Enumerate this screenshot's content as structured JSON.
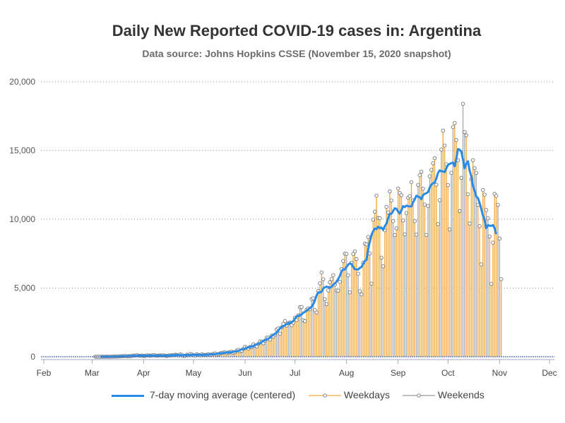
{
  "chart_data": {
    "type": "bar",
    "title": "Daily New Reported COVID-19 cases in: Argentina",
    "subtitle": "Data source: Johns Hopkins CSSE (November 15, 2020 snapshot)",
    "xlabel": "",
    "ylabel": "",
    "ylim": [
      0,
      20000
    ],
    "yticks": [
      "0",
      "5,000",
      "10,000",
      "15,000",
      "20,000"
    ],
    "ytick_values": [
      0,
      5000,
      10000,
      15000,
      20000
    ],
    "xticks": [
      "Feb",
      "Mar",
      "Apr",
      "May",
      "Jun",
      "Jul",
      "Aug",
      "Sep",
      "Oct",
      "Nov",
      "Dec"
    ],
    "xtick_dates": [
      "2020-02-01",
      "2020-03-01",
      "2020-04-01",
      "2020-05-01",
      "2020-06-01",
      "2020-07-01",
      "2020-08-01",
      "2020-09-01",
      "2020-10-01",
      "2020-11-01",
      "2020-12-01"
    ],
    "xlim": [
      "2020-02-01",
      "2020-12-01"
    ],
    "grid": "horizontal dotted",
    "legend_position": "bottom",
    "legend": [
      "7-day moving average (centered)",
      "Weekdays",
      "Weekends"
    ],
    "start_date": "2020-03-03",
    "daily_cases": [
      1,
      0,
      1,
      2,
      4,
      2,
      5,
      4,
      2,
      3,
      9,
      11,
      10,
      14,
      19,
      31,
      30,
      42,
      57,
      33,
      36,
      46,
      55,
      87,
      89,
      115,
      75,
      70,
      86,
      58,
      69,
      102,
      96,
      74,
      96,
      116,
      89,
      76,
      88,
      93,
      88,
      102,
      79,
      61,
      95,
      94,
      107,
      111,
      145,
      132,
      102,
      165,
      144,
      60,
      67,
      145,
      108,
      198,
      167,
      116,
      93,
      171,
      130,
      107,
      179,
      143,
      126,
      148,
      183,
      135,
      161,
      213,
      241,
      163,
      191,
      244,
      285,
      304,
      321,
      259,
      307,
      345,
      368,
      285,
      333,
      452,
      508,
      405,
      433,
      578,
      720,
      661,
      585,
      710,
      702,
      904,
      813,
      743,
      928,
      1114,
      1100,
      979,
      1168,
      1386,
      1391,
      1240,
      1531,
      1460,
      1600,
      1990,
      2060,
      1680,
      2140,
      2400,
      2600,
      2260,
      2440,
      2500,
      2290,
      2470,
      2845,
      2670,
      3010,
      3600,
      3620,
      2650,
      2590,
      3420,
      3520,
      3450,
      4200,
      4250,
      3390,
      3220,
      4780,
      5340,
      6130,
      5640,
      4190,
      3830,
      4820,
      5420,
      5640,
      5930,
      5240,
      4820,
      4810,
      5450,
      6380,
      6960,
      7500,
      7480,
      5930,
      4680,
      6840,
      7480,
      7660,
      7100,
      6040,
      4770,
      4540,
      6840,
      8230,
      8170,
      8710,
      7510,
      5320,
      9980,
      10550,
      11720,
      10100,
      10080,
      7210,
      6580,
      9200,
      10900,
      10500,
      12030,
      11370,
      9860,
      8850,
      9340,
      12240,
      11910,
      11750,
      9910,
      8900,
      10450,
      11570,
      11680,
      12700,
      11380,
      9860,
      8880,
      12500,
      13200,
      13470,
      12220,
      11070,
      8860,
      10960,
      13130,
      13590,
      14070,
      14440,
      12510,
      9650,
      11390,
      15070,
      16450,
      15360,
      14000,
      12480,
      9260,
      13380,
      16700,
      17000,
      15760,
      14290,
      10600,
      13010,
      18400,
      16340,
      16100,
      11820,
      9690,
      12900,
      14300,
      13720,
      13370,
      11050,
      9500,
      6720,
      12130,
      11790,
      10670,
      10070,
      8750,
      5300,
      8300,
      11850,
      11700,
      11050,
      8600,
      5650
    ],
    "colors": {
      "moving_average": "#2a8be4",
      "weekdays": "#f2a93b",
      "weekends": "#aaaaaa",
      "marker_edge": "#777777",
      "axis": "#8c9bb5"
    }
  }
}
